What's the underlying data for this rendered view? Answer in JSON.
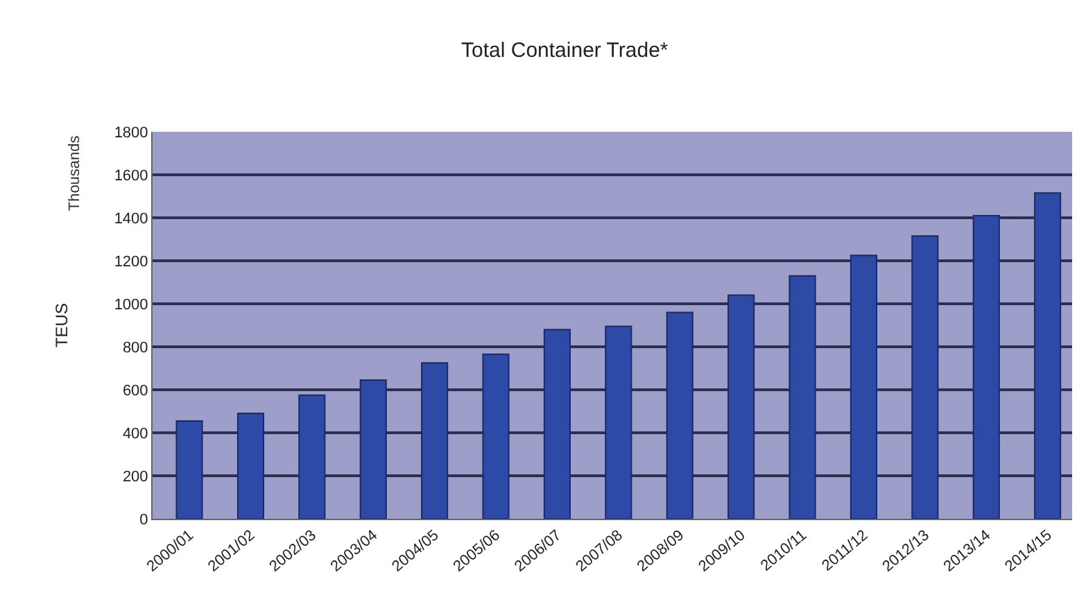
{
  "chart_data": {
    "type": "bar",
    "title": "Total Container Trade*",
    "ylabel": "TEUS",
    "annotations": [
      "Thousands"
    ],
    "categories": [
      "2000/01",
      "2001/02",
      "2002/03",
      "2003/04",
      "2004/05",
      "2005/06",
      "2006/07",
      "2007/08",
      "2008/09",
      "2009/10",
      "2010/11",
      "2011/12",
      "2012/13",
      "2013/14",
      "2014/15"
    ],
    "values": [
      455,
      490,
      575,
      645,
      725,
      765,
      880,
      895,
      960,
      1040,
      1130,
      1225,
      1315,
      1410,
      1515
    ],
    "color": "#2d4aa6",
    "ylim": [
      0,
      1800
    ],
    "yticks": [
      0,
      200,
      400,
      600,
      800,
      1000,
      1200,
      1400,
      1600,
      1800
    ],
    "grid": "y"
  }
}
